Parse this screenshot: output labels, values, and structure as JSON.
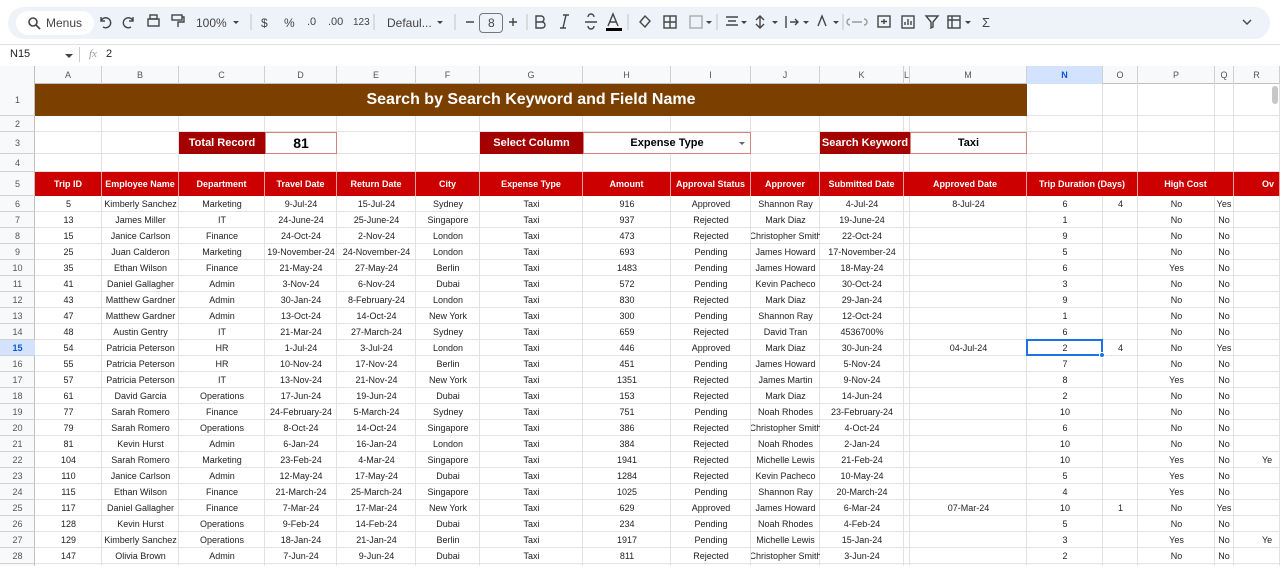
{
  "toolbar": {
    "search": "Menus",
    "zoom": "100%",
    "currency": "$",
    "percent": "%",
    "decrease_decimal": ".0",
    "increase_decimal": ".00",
    "number_format": "123",
    "font": "Defaul...",
    "font_size": 8,
    "functions": "Σ"
  },
  "formula_bar": {
    "cell": "N15",
    "fx": "fx",
    "value": 2
  },
  "column_letters": [
    "A",
    "B",
    "C",
    "D",
    "E",
    "F",
    "G",
    "H",
    "I",
    "J",
    "K",
    "L",
    "M",
    "N",
    "O",
    "P",
    "Q",
    "R"
  ],
  "row_numbers": [
    1,
    2,
    3,
    4,
    5,
    6,
    7,
    8,
    9,
    10,
    11,
    12,
    13,
    14,
    15,
    16,
    17,
    18,
    19,
    20,
    21,
    22,
    23,
    24,
    25,
    26,
    27,
    28
  ],
  "title": "Search by Search Keyword and Field Name",
  "controls": {
    "total_record_label": "Total Record",
    "total_record": 81,
    "select_column_label": "Select Column",
    "select_column": "Expense Type",
    "search_keyword_label": "Search Keyword",
    "search_keyword": "Taxi"
  },
  "table": {
    "header": [
      "Trip ID",
      "Employee Name",
      "Department",
      "Travel Date",
      "Return Date",
      "City",
      "Expense Type",
      "Amount",
      "Approval Status",
      "Approver",
      "Submitted Date",
      "Approved Date",
      "Trip Duration (Days)",
      "High Cost",
      "Ov"
    ],
    "rows": [
      [
        5,
        "Kimberly Sanchez",
        "Marketing",
        "9-Jul-24",
        "15-Jul-24",
        "Sydney",
        "Taxi",
        916,
        "Approved",
        "Shannon Ray",
        "4-Jul-24",
        "8-Jul-24",
        6,
        4,
        "No",
        "Yes",
        null
      ],
      [
        13,
        "James Miller",
        "IT",
        "24-June-24",
        "25-June-24",
        "Singapore",
        "Taxi",
        937,
        "Rejected",
        "Mark Diaz",
        "19-June-24",
        null,
        1,
        null,
        "No",
        "No",
        null
      ],
      [
        15,
        "Janice Carlson",
        "Finance",
        "24-Oct-24",
        "2-Nov-24",
        "London",
        "Taxi",
        473,
        "Rejected",
        "Christopher Smith",
        "22-Oct-24",
        null,
        9,
        null,
        "No",
        "No",
        null
      ],
      [
        25,
        "Juan Calderon",
        "Marketing",
        "19-November-24",
        "24-November-24",
        "London",
        "Taxi",
        693,
        "Pending",
        "James Howard",
        "17-November-24",
        null,
        5,
        null,
        "No",
        "No",
        null
      ],
      [
        35,
        "Ethan Wilson",
        "Finance",
        "21-May-24",
        "27-May-24",
        "Berlin",
        "Taxi",
        1483,
        "Pending",
        "James Howard",
        "18-May-24",
        null,
        6,
        null,
        "Yes",
        "No",
        null
      ],
      [
        41,
        "Daniel Gallagher",
        "Admin",
        "3-Nov-24",
        "6-Nov-24",
        "Dubai",
        "Taxi",
        572,
        "Pending",
        "Kevin Pacheco",
        "30-Oct-24",
        null,
        3,
        null,
        "No",
        "No",
        null
      ],
      [
        43,
        "Matthew Gardner",
        "Admin",
        "30-Jan-24",
        "8-February-24",
        "London",
        "Taxi",
        830,
        "Rejected",
        "Mark Diaz",
        "29-Jan-24",
        null,
        9,
        null,
        "No",
        "No",
        null
      ],
      [
        47,
        "Matthew Gardner",
        "Admin",
        "13-Oct-24",
        "14-Oct-24",
        "New York",
        "Taxi",
        300,
        "Pending",
        "Shannon Ray",
        "12-Oct-24",
        null,
        1,
        null,
        "No",
        "No",
        null
      ],
      [
        48,
        "Austin Gentry",
        "IT",
        "21-Mar-24",
        "27-March-24",
        "Sydney",
        "Taxi",
        659,
        "Rejected",
        "David Tran",
        "4536700%",
        null,
        6,
        null,
        "No",
        "No",
        null
      ],
      [
        54,
        "Patricia Peterson",
        "HR",
        "1-Jul-24",
        "3-Jul-24",
        "London",
        "Taxi",
        446,
        "Approved",
        "Mark Diaz",
        "30-Jun-24",
        "04-Jul-24",
        2,
        4,
        "No",
        "Yes",
        null
      ],
      [
        55,
        "Patricia Peterson",
        "HR",
        "10-Nov-24",
        "17-Nov-24",
        "Berlin",
        "Taxi",
        451,
        "Pending",
        "James Howard",
        "5-Nov-24",
        null,
        7,
        null,
        "No",
        "No",
        null
      ],
      [
        57,
        "Patricia Peterson",
        "IT",
        "13-Nov-24",
        "21-Nov-24",
        "New York",
        "Taxi",
        1351,
        "Rejected",
        "James Martin",
        "9-Nov-24",
        null,
        8,
        null,
        "Yes",
        "No",
        null
      ],
      [
        61,
        "David Garcia",
        "Operations",
        "17-Jun-24",
        "19-Jun-24",
        "Dubai",
        "Taxi",
        153,
        "Rejected",
        "Mark Diaz",
        "14-Jun-24",
        null,
        2,
        null,
        "No",
        "No",
        null
      ],
      [
        77,
        "Sarah Romero",
        "Finance",
        "24-February-24",
        "5-March-24",
        "Sydney",
        "Taxi",
        751,
        "Pending",
        "Noah Rhodes",
        "23-February-24",
        null,
        10,
        null,
        "No",
        "No",
        null
      ],
      [
        79,
        "Sarah Romero",
        "Operations",
        "8-Oct-24",
        "14-Oct-24",
        "Singapore",
        "Taxi",
        386,
        "Rejected",
        "Christopher Smith",
        "4-Oct-24",
        null,
        6,
        null,
        "No",
        "No",
        null
      ],
      [
        81,
        "Kevin Hurst",
        "Admin",
        "6-Jan-24",
        "16-Jan-24",
        "London",
        "Taxi",
        384,
        "Rejected",
        "Noah Rhodes",
        "2-Jan-24",
        null,
        10,
        null,
        "No",
        "No",
        null
      ],
      [
        104,
        "Sarah Romero",
        "Marketing",
        "23-Feb-24",
        "4-Mar-24",
        "Singapore",
        "Taxi",
        1941,
        "Rejected",
        "Michelle Lewis",
        "21-Feb-24",
        null,
        10,
        null,
        "Yes",
        "No",
        "Ye"
      ],
      [
        110,
        "Janice Carlson",
        "Admin",
        "12-May-24",
        "17-May-24",
        "Dubai",
        "Taxi",
        1284,
        "Rejected",
        "Kevin Pacheco",
        "10-May-24",
        null,
        5,
        null,
        "Yes",
        "No",
        null
      ],
      [
        115,
        "Ethan Wilson",
        "Finance",
        "21-March-24",
        "25-March-24",
        "Singapore",
        "Taxi",
        1025,
        "Pending",
        "Shannon Ray",
        "20-March-24",
        null,
        4,
        null,
        "Yes",
        "No",
        null
      ],
      [
        117,
        "Daniel Gallagher",
        "Finance",
        "7-Mar-24",
        "17-Mar-24",
        "New York",
        "Taxi",
        629,
        "Approved",
        "James Howard",
        "6-Mar-24",
        "07-Mar-24",
        10,
        1,
        "No",
        "Yes",
        null
      ],
      [
        128,
        "Kevin Hurst",
        "Operations",
        "9-Feb-24",
        "14-Feb-24",
        "Dubai",
        "Taxi",
        234,
        "Pending",
        "Noah Rhodes",
        "4-Feb-24",
        null,
        5,
        null,
        "No",
        "No",
        null
      ],
      [
        129,
        "Kimberly Sanchez",
        "Operations",
        "18-Jan-24",
        "21-Jan-24",
        "Berlin",
        "Taxi",
        1917,
        "Pending",
        "Michelle Lewis",
        "15-Jan-24",
        null,
        3,
        null,
        "Yes",
        "No",
        "Ye"
      ],
      [
        147,
        "Olivia Brown",
        "Admin",
        "7-Jun-24",
        "9-Jun-24",
        "Dubai",
        "Taxi",
        811,
        "Rejected",
        "Christopher Smith",
        "3-Jun-24",
        null,
        2,
        null,
        "No",
        "No",
        null
      ]
    ]
  }
}
